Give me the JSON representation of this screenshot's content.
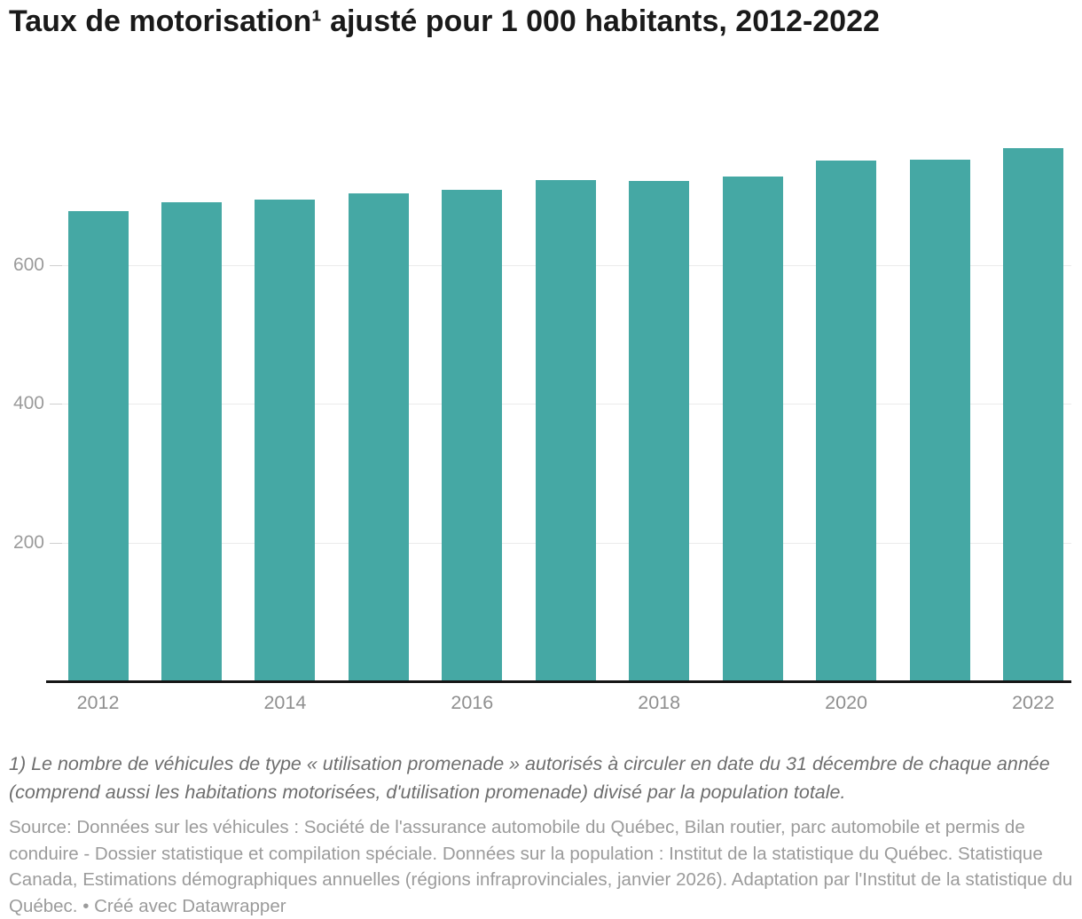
{
  "header": {
    "title": "Taux de motorisation¹ ajusté pour 1 000 habitants, 2012-2022"
  },
  "chart_data": {
    "type": "bar",
    "title": "Taux de motorisation¹ ajusté pour 1 000 habitants, 2012-2022",
    "categories": [
      "2012",
      "2013",
      "2014",
      "2015",
      "2016",
      "2017",
      "2018",
      "2019",
      "2020",
      "2021",
      "2022"
    ],
    "values": [
      678,
      690,
      694,
      703,
      708,
      722,
      721,
      728,
      751,
      752,
      768
    ],
    "xlabel": "",
    "ylabel": "",
    "ylim": [
      0,
      790
    ],
    "yticks": [
      200,
      400,
      600
    ],
    "x_tick_labels": [
      "2012",
      "2014",
      "2016",
      "2018",
      "2020",
      "2022"
    ],
    "grid": true,
    "legend_position": "none"
  },
  "colors": {
    "bar": "#45a8a4",
    "axis_label": "#9b9b9b",
    "x_label": "#8f8f8f",
    "gridline": "#ebebeb",
    "tick_dash": "#cfcfcf",
    "baseline": "#161616",
    "title": "#1a1a1a",
    "footnote": "#6e6e6e",
    "source": "#9b9b9b"
  },
  "footer": {
    "footnote": "1) Le nombre de véhicules de type « utilisation promenade » autorisés à circuler en date du 31 décembre de chaque année (comprend aussi les habitations motorisées, d'utilisation promenade) divisé par la population totale.",
    "source": "Source: Données sur les véhicules : Société de l'assurance automobile du Québec, Bilan routier, parc automobile et permis de conduire - Dossier statistique et compilation spéciale. Données sur la population : Institut de la statistique du Québec. Statistique Canada, Estimations démographiques annuelles (régions infraprovinciales, janvier 2026). Adaptation par l'Institut de la statistique du Québec. • Créé avec Datawrapper"
  }
}
